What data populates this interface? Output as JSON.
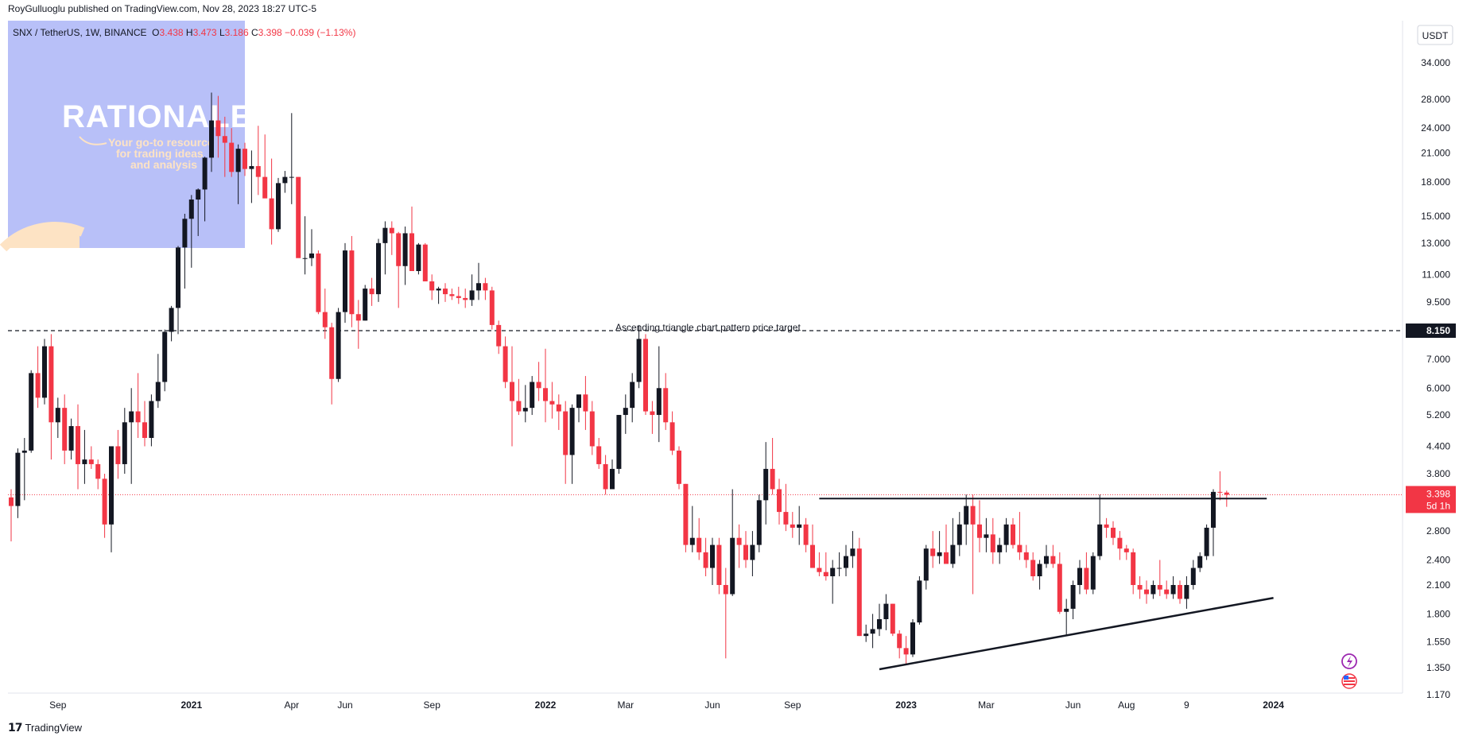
{
  "header": {
    "published_line": "RoyGulluoglu published on TradingView.com, Nov 28, 2023 18:27 UTC-5"
  },
  "symbol_bar": {
    "symbol": "SNX / TetherUS, 1W, BINANCE",
    "open_label": "O",
    "open": "3.438",
    "high_label": "H",
    "high": "3.473",
    "low_label": "L",
    "low": "3.186",
    "close_label": "C",
    "close": "3.398",
    "change": "−0.039 (−1.13%)"
  },
  "currency_button": "USDT",
  "watermark": {
    "title": "RATIONALE",
    "tagline_1": "Your go-to resource",
    "tagline_2": "for trading ideas",
    "tagline_3": "and analysis"
  },
  "annotation": "Ascending triangle chart pattern price target",
  "price_badges": {
    "target": "8.150",
    "last": "3.398",
    "countdown": "5d 1h"
  },
  "footer": {
    "brand": "TradingView"
  },
  "colors": {
    "up": "#131722",
    "down": "#f23645",
    "watermark_bg": "#b8c0f8",
    "watermark_sun": "#fde3c4"
  },
  "chart_data": {
    "type": "candlestick",
    "scale": "log",
    "y_ticks": [
      "34.000",
      "28.000",
      "24.000",
      "21.000",
      "18.000",
      "15.000",
      "13.000",
      "11.000",
      "9.500",
      "8.150",
      "7.000",
      "6.000",
      "5.200",
      "4.400",
      "3.800",
      "3.398",
      "2.800",
      "2.400",
      "2.100",
      "1.800",
      "1.550",
      "1.350",
      "1.170"
    ],
    "y_tick_values": [
      34,
      28,
      24,
      21,
      18,
      15,
      13,
      11,
      9.5,
      8.15,
      7,
      6,
      5.2,
      4.4,
      3.8,
      3.398,
      2.8,
      2.4,
      2.1,
      1.8,
      1.55,
      1.35,
      1.17
    ],
    "x_labels": [
      "Sep",
      "2021",
      "Apr",
      "Jun",
      "Sep",
      "2022",
      "Mar",
      "Jun",
      "Sep",
      "2023",
      "Mar",
      "Jun",
      "Aug",
      "9",
      "2024"
    ],
    "x_label_weeks": [
      7,
      27,
      42,
      50,
      63,
      80,
      92,
      105,
      117,
      134,
      146,
      159,
      167,
      176,
      189
    ],
    "horizontal_levels": [
      {
        "name": "price target",
        "value": 8.15,
        "style": "dashed"
      },
      {
        "name": "resistance",
        "value": 3.33,
        "style": "solid",
        "from_week": 121,
        "to_week": 188
      }
    ],
    "trendline": {
      "from_week": 130,
      "from_value": 1.34,
      "to_week": 189,
      "to_value": 1.96
    },
    "weeks": [
      {
        "o": 3.35,
        "h": 3.5,
        "l": 2.65,
        "c": 3.2
      },
      {
        "o": 3.2,
        "h": 4.35,
        "l": 3.0,
        "c": 4.25
      },
      {
        "o": 4.25,
        "h": 4.6,
        "l": 3.3,
        "c": 4.3
      },
      {
        "o": 4.3,
        "h": 6.6,
        "l": 4.25,
        "c": 6.5
      },
      {
        "o": 6.5,
        "h": 7.5,
        "l": 5.4,
        "c": 5.7
      },
      {
        "o": 5.7,
        "h": 7.8,
        "l": 5.5,
        "c": 7.5
      },
      {
        "o": 7.5,
        "h": 8.0,
        "l": 4.1,
        "c": 5.0
      },
      {
        "o": 5.0,
        "h": 5.7,
        "l": 4.6,
        "c": 5.4
      },
      {
        "o": 5.4,
        "h": 5.8,
        "l": 4.0,
        "c": 4.3
      },
      {
        "o": 4.3,
        "h": 5.1,
        "l": 4.1,
        "c": 4.9
      },
      {
        "o": 4.9,
        "h": 5.5,
        "l": 3.5,
        "c": 4.0
      },
      {
        "o": 4.0,
        "h": 4.8,
        "l": 3.6,
        "c": 4.1
      },
      {
        "o": 4.1,
        "h": 4.4,
        "l": 3.9,
        "c": 4.0
      },
      {
        "o": 4.0,
        "h": 4.1,
        "l": 3.5,
        "c": 3.7
      },
      {
        "o": 3.7,
        "h": 3.8,
        "l": 2.7,
        "c": 2.9
      },
      {
        "o": 2.9,
        "h": 4.4,
        "l": 2.5,
        "c": 4.4
      },
      {
        "o": 4.4,
        "h": 4.8,
        "l": 3.7,
        "c": 4.0
      },
      {
        "o": 4.0,
        "h": 5.4,
        "l": 3.8,
        "c": 5.0
      },
      {
        "o": 5.0,
        "h": 6.0,
        "l": 3.6,
        "c": 5.3
      },
      {
        "o": 5.3,
        "h": 6.5,
        "l": 4.6,
        "c": 5.0
      },
      {
        "o": 5.0,
        "h": 5.6,
        "l": 4.4,
        "c": 4.6
      },
      {
        "o": 4.6,
        "h": 5.8,
        "l": 4.4,
        "c": 5.6
      },
      {
        "o": 5.6,
        "h": 7.2,
        "l": 5.4,
        "c": 6.2
      },
      {
        "o": 6.2,
        "h": 8.2,
        "l": 5.9,
        "c": 8.1
      },
      {
        "o": 8.1,
        "h": 9.3,
        "l": 7.7,
        "c": 9.2
      },
      {
        "o": 9.2,
        "h": 12.8,
        "l": 8.0,
        "c": 12.7
      },
      {
        "o": 12.7,
        "h": 15.2,
        "l": 10.2,
        "c": 14.8
      },
      {
        "o": 14.8,
        "h": 16.8,
        "l": 11.4,
        "c": 16.4
      },
      {
        "o": 16.4,
        "h": 17.4,
        "l": 13.5,
        "c": 17.3
      },
      {
        "o": 17.3,
        "h": 20.6,
        "l": 14.6,
        "c": 20.5
      },
      {
        "o": 20.5,
        "h": 29.0,
        "l": 19.0,
        "c": 25.0
      },
      {
        "o": 25.0,
        "h": 28.5,
        "l": 20.5,
        "c": 23.0
      },
      {
        "o": 23.0,
        "h": 25.5,
        "l": 18.5,
        "c": 22.2
      },
      {
        "o": 22.2,
        "h": 24.0,
        "l": 18.5,
        "c": 19.0
      },
      {
        "o": 19.0,
        "h": 22.0,
        "l": 16.0,
        "c": 21.5
      },
      {
        "o": 21.5,
        "h": 22.2,
        "l": 18.6,
        "c": 19.3
      },
      {
        "o": 19.3,
        "h": 21.3,
        "l": 16.1,
        "c": 19.6
      },
      {
        "o": 19.6,
        "h": 24.3,
        "l": 16.8,
        "c": 18.5
      },
      {
        "o": 18.5,
        "h": 23.2,
        "l": 16.6,
        "c": 16.5
      },
      {
        "o": 16.5,
        "h": 20.4,
        "l": 12.9,
        "c": 14.0
      },
      {
        "o": 14.0,
        "h": 18.4,
        "l": 13.8,
        "c": 17.9
      },
      {
        "o": 17.9,
        "h": 19.1,
        "l": 17.0,
        "c": 18.5
      },
      {
        "o": 18.5,
        "h": 26.0,
        "l": 16.0,
        "c": 18.5
      },
      {
        "o": 18.5,
        "h": 18.5,
        "l": 12.5,
        "c": 12.0
      },
      {
        "o": 12.0,
        "h": 15.0,
        "l": 11.0,
        "c": 12.0
      },
      {
        "o": 12.0,
        "h": 14.0,
        "l": 11.5,
        "c": 12.3
      },
      {
        "o": 12.3,
        "h": 12.5,
        "l": 8.9,
        "c": 9.0
      },
      {
        "o": 9.0,
        "h": 10.2,
        "l": 7.8,
        "c": 8.3
      },
      {
        "o": 8.3,
        "h": 8.5,
        "l": 5.5,
        "c": 6.3
      },
      {
        "o": 6.3,
        "h": 9.2,
        "l": 6.2,
        "c": 9.0
      },
      {
        "o": 9.0,
        "h": 13.0,
        "l": 8.5,
        "c": 12.5
      },
      {
        "o": 12.5,
        "h": 13.5,
        "l": 8.3,
        "c": 8.9
      },
      {
        "o": 8.9,
        "h": 9.6,
        "l": 7.4,
        "c": 8.6
      },
      {
        "o": 8.6,
        "h": 10.4,
        "l": 8.6,
        "c": 10.2
      },
      {
        "o": 10.2,
        "h": 10.8,
        "l": 9.3,
        "c": 9.9
      },
      {
        "o": 9.9,
        "h": 13.3,
        "l": 9.5,
        "c": 13.0
      },
      {
        "o": 13.0,
        "h": 14.6,
        "l": 11.0,
        "c": 14.1
      },
      {
        "o": 14.1,
        "h": 14.6,
        "l": 12.2,
        "c": 13.7
      },
      {
        "o": 13.7,
        "h": 13.8,
        "l": 9.2,
        "c": 11.5
      },
      {
        "o": 11.5,
        "h": 14.2,
        "l": 10.4,
        "c": 13.7
      },
      {
        "o": 13.7,
        "h": 15.8,
        "l": 11.2,
        "c": 11.2
      },
      {
        "o": 11.2,
        "h": 13.0,
        "l": 11.0,
        "c": 12.9
      },
      {
        "o": 12.9,
        "h": 13.0,
        "l": 10.6,
        "c": 10.6
      },
      {
        "o": 10.6,
        "h": 11.0,
        "l": 9.6,
        "c": 10.1
      },
      {
        "o": 10.1,
        "h": 10.3,
        "l": 9.4,
        "c": 10.2
      },
      {
        "o": 10.2,
        "h": 10.5,
        "l": 9.5,
        "c": 9.9
      },
      {
        "o": 9.9,
        "h": 10.2,
        "l": 9.6,
        "c": 9.8
      },
      {
        "o": 9.8,
        "h": 10.3,
        "l": 9.4,
        "c": 9.7
      },
      {
        "o": 9.7,
        "h": 10.2,
        "l": 9.2,
        "c": 9.6
      },
      {
        "o": 9.6,
        "h": 11.0,
        "l": 9.3,
        "c": 10.1
      },
      {
        "o": 10.1,
        "h": 11.7,
        "l": 9.6,
        "c": 10.5
      },
      {
        "o": 10.5,
        "h": 10.8,
        "l": 9.6,
        "c": 10.1
      },
      {
        "o": 10.1,
        "h": 10.3,
        "l": 8.2,
        "c": 8.4
      },
      {
        "o": 8.4,
        "h": 8.6,
        "l": 7.2,
        "c": 7.5
      },
      {
        "o": 7.5,
        "h": 7.9,
        "l": 6.0,
        "c": 6.2
      },
      {
        "o": 6.2,
        "h": 7.5,
        "l": 4.4,
        "c": 5.6
      },
      {
        "o": 5.6,
        "h": 6.3,
        "l": 5.2,
        "c": 5.3
      },
      {
        "o": 5.3,
        "h": 6.1,
        "l": 5.0,
        "c": 5.4
      },
      {
        "o": 5.4,
        "h": 6.4,
        "l": 5.2,
        "c": 6.2
      },
      {
        "o": 6.2,
        "h": 6.9,
        "l": 5.6,
        "c": 6.0
      },
      {
        "o": 6.0,
        "h": 7.4,
        "l": 5.0,
        "c": 5.6
      },
      {
        "o": 5.6,
        "h": 6.2,
        "l": 5.1,
        "c": 5.5
      },
      {
        "o": 5.5,
        "h": 5.8,
        "l": 4.8,
        "c": 5.3
      },
      {
        "o": 5.3,
        "h": 5.6,
        "l": 3.6,
        "c": 4.2
      },
      {
        "o": 4.2,
        "h": 5.5,
        "l": 3.6,
        "c": 5.4
      },
      {
        "o": 5.4,
        "h": 5.6,
        "l": 5.0,
        "c": 5.8
      },
      {
        "o": 5.8,
        "h": 6.4,
        "l": 4.8,
        "c": 5.3
      },
      {
        "o": 5.3,
        "h": 5.6,
        "l": 4.2,
        "c": 4.4
      },
      {
        "o": 4.4,
        "h": 4.6,
        "l": 3.9,
        "c": 4.0
      },
      {
        "o": 4.0,
        "h": 4.2,
        "l": 3.4,
        "c": 3.5
      },
      {
        "o": 3.5,
        "h": 4.1,
        "l": 3.6,
        "c": 3.9
      },
      {
        "o": 3.9,
        "h": 5.2,
        "l": 3.8,
        "c": 5.2
      },
      {
        "o": 5.2,
        "h": 5.8,
        "l": 4.7,
        "c": 5.4
      },
      {
        "o": 5.4,
        "h": 6.5,
        "l": 5.0,
        "c": 6.2
      },
      {
        "o": 6.2,
        "h": 8.4,
        "l": 6.0,
        "c": 7.8
      },
      {
        "o": 7.8,
        "h": 8.0,
        "l": 5.2,
        "c": 5.3
      },
      {
        "o": 5.3,
        "h": 5.6,
        "l": 4.7,
        "c": 5.2
      },
      {
        "o": 5.2,
        "h": 7.5,
        "l": 4.5,
        "c": 6.0
      },
      {
        "o": 6.0,
        "h": 6.5,
        "l": 4.8,
        "c": 5.0
      },
      {
        "o": 5.0,
        "h": 5.3,
        "l": 4.2,
        "c": 4.3
      },
      {
        "o": 4.3,
        "h": 4.4,
        "l": 3.5,
        "c": 3.6
      },
      {
        "o": 3.6,
        "h": 3.6,
        "l": 2.5,
        "c": 2.6
      },
      {
        "o": 2.6,
        "h": 3.2,
        "l": 2.5,
        "c": 2.7
      },
      {
        "o": 2.7,
        "h": 3.0,
        "l": 2.4,
        "c": 2.5
      },
      {
        "o": 2.5,
        "h": 2.7,
        "l": 2.2,
        "c": 2.3
      },
      {
        "o": 2.3,
        "h": 2.7,
        "l": 2.1,
        "c": 2.6
      },
      {
        "o": 2.6,
        "h": 2.7,
        "l": 2.0,
        "c": 2.1
      },
      {
        "o": 2.1,
        "h": 2.3,
        "l": 1.42,
        "c": 2.0
      },
      {
        "o": 2.0,
        "h": 3.5,
        "l": 1.98,
        "c": 2.7
      },
      {
        "o": 2.7,
        "h": 2.9,
        "l": 2.3,
        "c": 2.6
      },
      {
        "o": 2.6,
        "h": 2.8,
        "l": 2.3,
        "c": 2.4
      },
      {
        "o": 2.4,
        "h": 2.8,
        "l": 2.2,
        "c": 2.6
      },
      {
        "o": 2.6,
        "h": 3.4,
        "l": 2.5,
        "c": 3.3
      },
      {
        "o": 3.3,
        "h": 4.5,
        "l": 2.9,
        "c": 3.9
      },
      {
        "o": 3.9,
        "h": 4.6,
        "l": 3.4,
        "c": 3.5
      },
      {
        "o": 3.5,
        "h": 3.7,
        "l": 2.9,
        "c": 3.1
      },
      {
        "o": 3.1,
        "h": 3.6,
        "l": 2.8,
        "c": 2.9
      },
      {
        "o": 2.9,
        "h": 3.1,
        "l": 2.7,
        "c": 2.85
      },
      {
        "o": 2.85,
        "h": 3.2,
        "l": 2.6,
        "c": 2.9
      },
      {
        "o": 2.9,
        "h": 3.0,
        "l": 2.5,
        "c": 2.6
      },
      {
        "o": 2.6,
        "h": 2.9,
        "l": 2.3,
        "c": 2.3
      },
      {
        "o": 2.3,
        "h": 2.5,
        "l": 2.2,
        "c": 2.25
      },
      {
        "o": 2.25,
        "h": 2.5,
        "l": 2.15,
        "c": 2.2
      },
      {
        "o": 2.2,
        "h": 2.4,
        "l": 1.9,
        "c": 2.3
      },
      {
        "o": 2.3,
        "h": 2.5,
        "l": 2.2,
        "c": 2.3
      },
      {
        "o": 2.3,
        "h": 2.6,
        "l": 2.2,
        "c": 2.45
      },
      {
        "o": 2.45,
        "h": 2.8,
        "l": 2.3,
        "c": 2.55
      },
      {
        "o": 2.55,
        "h": 2.7,
        "l": 1.6,
        "c": 1.6
      },
      {
        "o": 1.6,
        "h": 1.7,
        "l": 1.55,
        "c": 1.62
      },
      {
        "o": 1.62,
        "h": 1.8,
        "l": 1.5,
        "c": 1.66
      },
      {
        "o": 1.66,
        "h": 1.9,
        "l": 1.6,
        "c": 1.75
      },
      {
        "o": 1.75,
        "h": 2.0,
        "l": 1.65,
        "c": 1.9
      },
      {
        "o": 1.9,
        "h": 1.9,
        "l": 1.6,
        "c": 1.62
      },
      {
        "o": 1.62,
        "h": 1.65,
        "l": 1.42,
        "c": 1.5
      },
      {
        "o": 1.5,
        "h": 1.6,
        "l": 1.38,
        "c": 1.45
      },
      {
        "o": 1.45,
        "h": 1.75,
        "l": 1.43,
        "c": 1.72
      },
      {
        "o": 1.72,
        "h": 2.2,
        "l": 1.7,
        "c": 2.15
      },
      {
        "o": 2.15,
        "h": 2.6,
        "l": 2.05,
        "c": 2.55
      },
      {
        "o": 2.55,
        "h": 2.8,
        "l": 2.3,
        "c": 2.45
      },
      {
        "o": 2.45,
        "h": 2.8,
        "l": 2.35,
        "c": 2.5
      },
      {
        "o": 2.5,
        "h": 2.9,
        "l": 2.4,
        "c": 2.35
      },
      {
        "o": 2.35,
        "h": 3.0,
        "l": 2.3,
        "c": 2.6
      },
      {
        "o": 2.6,
        "h": 3.1,
        "l": 2.45,
        "c": 2.9
      },
      {
        "o": 2.9,
        "h": 3.4,
        "l": 2.6,
        "c": 3.2
      },
      {
        "o": 3.2,
        "h": 3.4,
        "l": 2.0,
        "c": 2.9
      },
      {
        "o": 2.9,
        "h": 3.3,
        "l": 2.5,
        "c": 2.7
      },
      {
        "o": 2.7,
        "h": 3.0,
        "l": 2.5,
        "c": 2.75
      },
      {
        "o": 2.75,
        "h": 3.0,
        "l": 2.35,
        "c": 2.5
      },
      {
        "o": 2.5,
        "h": 2.7,
        "l": 2.35,
        "c": 2.6
      },
      {
        "o": 2.6,
        "h": 3.0,
        "l": 2.5,
        "c": 2.9
      },
      {
        "o": 2.9,
        "h": 3.0,
        "l": 2.55,
        "c": 2.6
      },
      {
        "o": 2.6,
        "h": 3.1,
        "l": 2.4,
        "c": 2.5
      },
      {
        "o": 2.5,
        "h": 2.6,
        "l": 2.3,
        "c": 2.4
      },
      {
        "o": 2.4,
        "h": 2.5,
        "l": 2.15,
        "c": 2.2
      },
      {
        "o": 2.2,
        "h": 2.4,
        "l": 2.05,
        "c": 2.35
      },
      {
        "o": 2.35,
        "h": 2.6,
        "l": 2.3,
        "c": 2.45
      },
      {
        "o": 2.45,
        "h": 2.6,
        "l": 2.3,
        "c": 2.35
      },
      {
        "o": 2.35,
        "h": 2.5,
        "l": 1.8,
        "c": 1.82
      },
      {
        "o": 1.82,
        "h": 1.95,
        "l": 1.6,
        "c": 1.85
      },
      {
        "o": 1.85,
        "h": 2.15,
        "l": 1.75,
        "c": 2.1
      },
      {
        "o": 2.1,
        "h": 2.4,
        "l": 2.0,
        "c": 2.3
      },
      {
        "o": 2.3,
        "h": 2.5,
        "l": 2.0,
        "c": 2.05
      },
      {
        "o": 2.05,
        "h": 2.5,
        "l": 2.0,
        "c": 2.45
      },
      {
        "o": 2.45,
        "h": 3.4,
        "l": 2.4,
        "c": 2.9
      },
      {
        "o": 2.9,
        "h": 3.0,
        "l": 2.7,
        "c": 2.85
      },
      {
        "o": 2.85,
        "h": 2.95,
        "l": 2.6,
        "c": 2.7
      },
      {
        "o": 2.7,
        "h": 2.8,
        "l": 2.4,
        "c": 2.55
      },
      {
        "o": 2.55,
        "h": 2.6,
        "l": 2.4,
        "c": 2.5
      },
      {
        "o": 2.5,
        "h": 2.55,
        "l": 2.0,
        "c": 2.1
      },
      {
        "o": 2.1,
        "h": 2.2,
        "l": 1.95,
        "c": 2.05
      },
      {
        "o": 2.05,
        "h": 2.15,
        "l": 1.9,
        "c": 2.0
      },
      {
        "o": 2.0,
        "h": 2.15,
        "l": 1.95,
        "c": 2.1
      },
      {
        "o": 2.1,
        "h": 2.4,
        "l": 1.98,
        "c": 2.05
      },
      {
        "o": 2.05,
        "h": 2.15,
        "l": 1.95,
        "c": 2.0
      },
      {
        "o": 2.0,
        "h": 2.2,
        "l": 1.95,
        "c": 2.1
      },
      {
        "o": 2.1,
        "h": 2.15,
        "l": 1.9,
        "c": 1.95
      },
      {
        "o": 1.95,
        "h": 2.2,
        "l": 1.85,
        "c": 2.1
      },
      {
        "o": 2.1,
        "h": 2.4,
        "l": 2.05,
        "c": 2.3
      },
      {
        "o": 2.3,
        "h": 2.5,
        "l": 2.25,
        "c": 2.45
      },
      {
        "o": 2.45,
        "h": 2.9,
        "l": 2.4,
        "c": 2.85
      },
      {
        "o": 2.85,
        "h": 3.5,
        "l": 2.45,
        "c": 3.45
      },
      {
        "o": 3.45,
        "h": 3.85,
        "l": 3.3,
        "c": 3.44
      },
      {
        "o": 3.438,
        "h": 3.473,
        "l": 3.186,
        "c": 3.398
      }
    ]
  }
}
